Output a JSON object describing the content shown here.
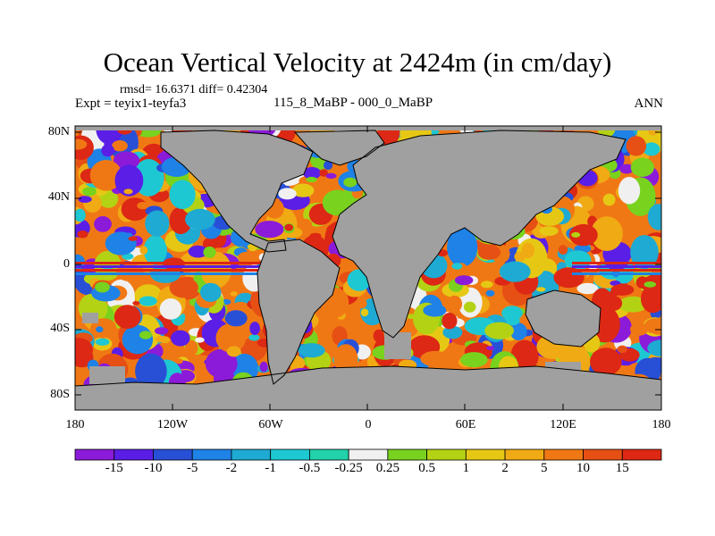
{
  "figure": {
    "title": "Ocean Vertical Velocity at 2424m (in cm/day)",
    "stats": "rmsd= 16.6371 diff= 0.42304",
    "experiment": "Expt = teyix1-teyfa3",
    "center_label": "115_8_MaBP - 000_0_MaBP",
    "season": "ANN"
  },
  "map": {
    "land_color": "#a0a0a0",
    "lat_labels": [
      "80N",
      "40N",
      "0",
      "40S",
      "80S"
    ],
    "lon_labels": [
      "180",
      "120W",
      "60W",
      "0",
      "60E",
      "120E",
      "180"
    ]
  },
  "colorbar": {
    "labels": [
      "-15",
      "-10",
      "-5",
      "-2",
      "-1",
      "-0.5",
      "-0.25",
      "0.25",
      "0.5",
      "1",
      "2",
      "5",
      "10",
      "15"
    ],
    "colors": [
      "#8c1ad9",
      "#5a1ee6",
      "#2850d7",
      "#1e82e6",
      "#1eaad2",
      "#1ec8d2",
      "#22d2aa",
      "#f0f0f0",
      "#78d21e",
      "#b4d214",
      "#e6c814",
      "#f0aa14",
      "#f07814",
      "#e65014",
      "#dc2814"
    ]
  }
}
